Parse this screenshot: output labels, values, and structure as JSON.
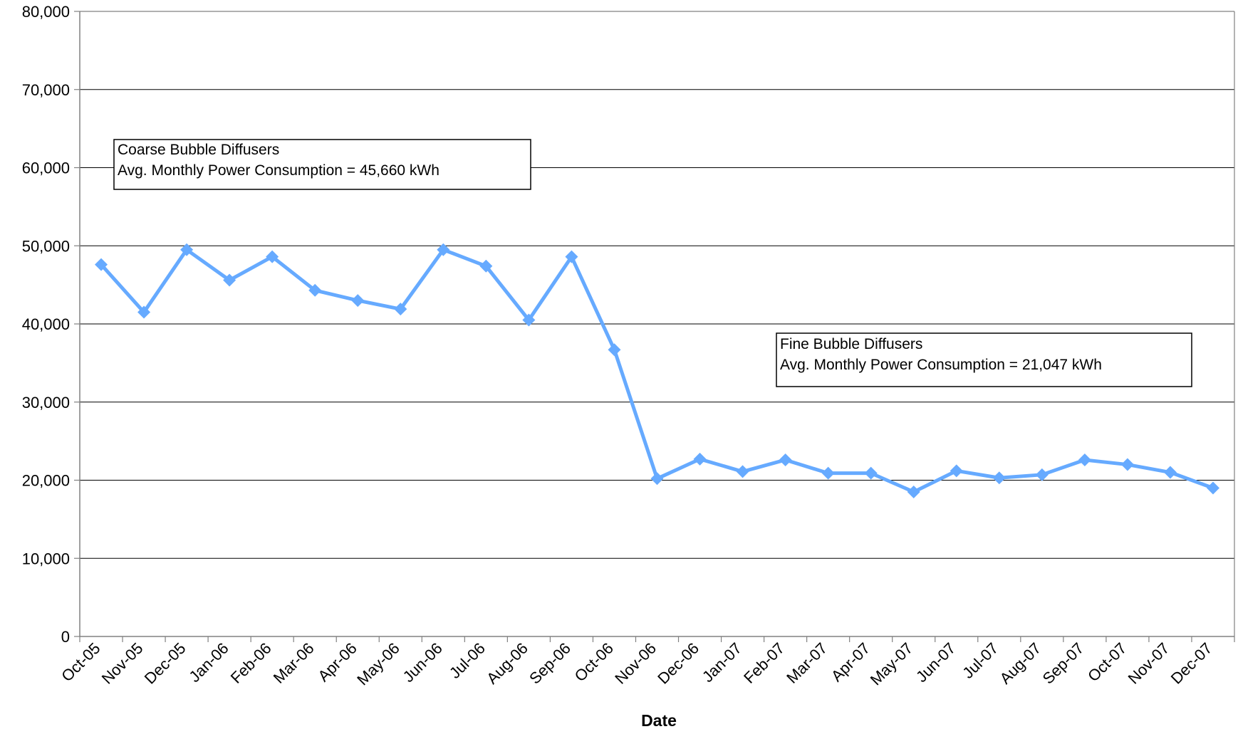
{
  "chart_data": {
    "type": "line",
    "title": "",
    "xlabel": "Date",
    "ylabel": "",
    "ylim": [
      0,
      80000
    ],
    "y_ticks": [
      "0",
      "10,000",
      "20,000",
      "30,000",
      "40,000",
      "50,000",
      "60,000",
      "70,000",
      "80,000"
    ],
    "y_tick_values": [
      0,
      10000,
      20000,
      30000,
      40000,
      50000,
      60000,
      70000,
      80000
    ],
    "grid": true,
    "categories": [
      "Oct-05",
      "Nov-05",
      "Dec-05",
      "Jan-06",
      "Feb-06",
      "Mar-06",
      "Apr-06",
      "May-06",
      "Jun-06",
      "Jul-06",
      "Aug-06",
      "Sep-06",
      "Oct-06",
      "Nov-06",
      "Dec-06",
      "Jan-07",
      "Feb-07",
      "Mar-07",
      "Apr-07",
      "May-07",
      "Jun-07",
      "Jul-07",
      "Aug-07",
      "Sep-07",
      "Oct-07",
      "Nov-07",
      "Dec-07"
    ],
    "series": [
      {
        "values": [
          47600,
          41500,
          49500,
          45600,
          48600,
          44300,
          43000,
          41900,
          49500,
          47400,
          40500,
          48600,
          36700,
          20200,
          22700,
          21100,
          22600,
          20900,
          20900,
          18500,
          21200,
          20300,
          20700,
          22600,
          22000,
          21000,
          19000
        ],
        "color": "#66aaff"
      }
    ],
    "annotations": [
      {
        "line1": "Coarse Bubble Diffusers",
        "line2": "Avg. Monthly Power Consumption = 45,660 kWh"
      },
      {
        "line1": "Fine Bubble Diffusers",
        "line2": "Avg. Monthly Power Consumption = 21,047 kWh"
      }
    ],
    "colors": {
      "line": "#66aaff",
      "grid": "#000000",
      "axis": "#808080"
    }
  }
}
